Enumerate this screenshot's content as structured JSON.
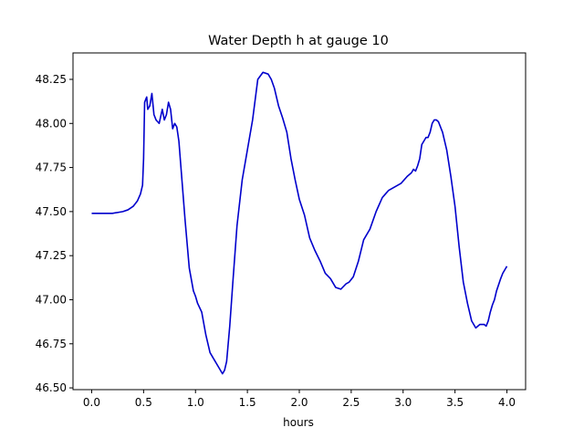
{
  "chart_data": {
    "type": "line",
    "title": "Water Depth h at gauge 10",
    "xlabel": "hours",
    "ylabel": "",
    "xlim": [
      -0.18,
      4.18
    ],
    "ylim": [
      46.49,
      48.4
    ],
    "grid": false,
    "xticks": [
      0.0,
      0.5,
      1.0,
      1.5,
      2.0,
      2.5,
      3.0,
      3.5,
      4.0
    ],
    "xtick_labels": [
      "0.0",
      "0.5",
      "1.0",
      "1.5",
      "2.0",
      "2.5",
      "3.0",
      "3.5",
      "4.0"
    ],
    "yticks": [
      46.5,
      46.75,
      47.0,
      47.25,
      47.5,
      47.75,
      48.0,
      48.25
    ],
    "ytick_labels": [
      "46.50",
      "46.75",
      "47.00",
      "47.25",
      "47.50",
      "47.75",
      "48.00",
      "48.25"
    ],
    "series": [
      {
        "color": "#0000cc",
        "x": [
          0.0,
          0.1,
          0.2,
          0.3,
          0.35,
          0.4,
          0.44,
          0.47,
          0.49,
          0.5,
          0.51,
          0.53,
          0.54,
          0.56,
          0.58,
          0.6,
          0.62,
          0.65,
          0.68,
          0.7,
          0.72,
          0.74,
          0.76,
          0.78,
          0.8,
          0.82,
          0.84,
          0.86,
          0.9,
          0.94,
          0.98,
          1.0,
          1.02,
          1.06,
          1.1,
          1.14,
          1.18,
          1.22,
          1.26,
          1.28,
          1.3,
          1.33,
          1.36,
          1.4,
          1.45,
          1.5,
          1.55,
          1.6,
          1.65,
          1.7,
          1.73,
          1.76,
          1.8,
          1.84,
          1.88,
          1.92,
          1.96,
          2.0,
          2.05,
          2.1,
          2.15,
          2.2,
          2.25,
          2.3,
          2.35,
          2.4,
          2.45,
          2.48,
          2.52,
          2.57,
          2.62,
          2.68,
          2.74,
          2.8,
          2.86,
          2.92,
          2.98,
          3.04,
          3.08,
          3.1,
          3.12,
          3.14,
          3.16,
          3.18,
          3.2,
          3.22,
          3.24,
          3.26,
          3.28,
          3.3,
          3.32,
          3.34,
          3.38,
          3.42,
          3.46,
          3.5,
          3.54,
          3.58,
          3.62,
          3.66,
          3.7,
          3.74,
          3.78,
          3.8,
          3.82,
          3.84,
          3.86,
          3.88,
          3.9,
          3.94,
          3.96,
          3.98,
          4.0
        ],
        "y": [
          47.49,
          47.49,
          47.49,
          47.5,
          47.51,
          47.53,
          47.56,
          47.6,
          47.65,
          47.8,
          48.12,
          48.15,
          48.08,
          48.1,
          48.17,
          48.05,
          48.02,
          48.0,
          48.08,
          48.02,
          48.05,
          48.12,
          48.08,
          47.97,
          48.0,
          47.98,
          47.9,
          47.75,
          47.45,
          47.18,
          47.05,
          47.02,
          46.98,
          46.93,
          46.8,
          46.7,
          46.66,
          46.62,
          46.58,
          46.6,
          46.65,
          46.85,
          47.1,
          47.42,
          47.68,
          47.85,
          48.02,
          48.25,
          48.29,
          48.28,
          48.25,
          48.2,
          48.1,
          48.03,
          47.95,
          47.8,
          47.68,
          47.57,
          47.48,
          47.35,
          47.28,
          47.22,
          47.15,
          47.12,
          47.07,
          47.06,
          47.09,
          47.1,
          47.13,
          47.22,
          47.34,
          47.4,
          47.5,
          47.58,
          47.62,
          47.64,
          47.66,
          47.7,
          47.72,
          47.74,
          47.73,
          47.76,
          47.8,
          47.88,
          47.9,
          47.92,
          47.92,
          47.95,
          48.0,
          48.02,
          48.02,
          48.01,
          47.95,
          47.85,
          47.7,
          47.53,
          47.3,
          47.1,
          46.98,
          46.88,
          46.84,
          46.86,
          46.86,
          46.85,
          46.88,
          46.93,
          46.97,
          47.0,
          47.05,
          47.12,
          47.15,
          47.17,
          47.19
        ]
      }
    ]
  }
}
